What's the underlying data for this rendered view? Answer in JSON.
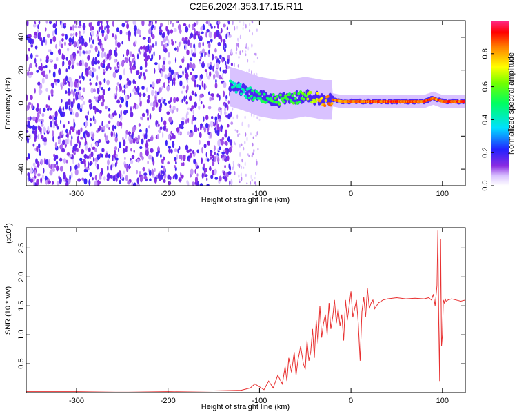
{
  "title": "C2E6.2024.353.17.15.R11",
  "chart_data": [
    {
      "type": "heatmap",
      "xlabel": "Height of straight line (km)",
      "ylabel": "Frequency (Hz)",
      "xlim": [
        -355,
        125
      ],
      "ylim": [
        -50,
        50
      ],
      "x_ticks": [
        "-300",
        "-200",
        "-100",
        "0",
        "100"
      ],
      "x_tick_values": [
        -300,
        -200,
        -100,
        0,
        100
      ],
      "y_ticks": [
        "-40",
        "-20",
        "0",
        "20",
        "40"
      ],
      "y_tick_values": [
        -40,
        -20,
        0,
        20,
        40
      ],
      "colorbar": {
        "label": "Normalized spectral amplitude",
        "range": [
          0,
          1
        ],
        "ticks": [
          "0.0",
          "0.2",
          "0.4",
          "0.6",
          "0.8"
        ],
        "tick_values": [
          0.0,
          0.2,
          0.4,
          0.6,
          0.8
        ]
      },
      "noise_region": {
        "x_range": [
          -355,
          -130
        ],
        "frequency_range": [
          -50,
          50
        ],
        "amplitude": [
          0.05,
          0.2
        ]
      },
      "signal_track": {
        "x": [
          -132,
          -120,
          -110,
          -100,
          -90,
          -80,
          -70,
          -60,
          -50,
          -40,
          -30,
          -20,
          -10,
          0,
          20,
          40,
          60,
          80,
          90,
          95,
          100,
          110,
          125
        ],
        "frequency": [
          10,
          8,
          6,
          4,
          3,
          2,
          2,
          3,
          4,
          3,
          2,
          2,
          1,
          1,
          1,
          1,
          1,
          1,
          3,
          2,
          1,
          1,
          1
        ],
        "peak_amplitude": [
          0.45,
          0.45,
          0.5,
          0.55,
          0.55,
          0.6,
          0.6,
          0.6,
          0.65,
          0.75,
          0.85,
          0.9,
          0.9,
          0.9,
          0.95,
          0.95,
          0.95,
          0.95,
          0.9,
          0.9,
          0.95,
          0.95,
          0.95
        ]
      }
    },
    {
      "type": "line",
      "xlabel": "Height of straight line (km)",
      "ylabel": "SNR (10 * v/v)",
      "y_scale_label": "(x10",
      "y_scale_exp": "4",
      "xlim": [
        -355,
        125
      ],
      "ylim": [
        0,
        2.85
      ],
      "x_ticks": [
        "-300",
        "-200",
        "-100",
        "0",
        "100"
      ],
      "x_tick_values": [
        -300,
        -200,
        -100,
        0,
        100
      ],
      "y_ticks": [
        "0.5",
        "1.0",
        "1.5",
        "2.0",
        "2.5"
      ],
      "y_tick_values": [
        0.5,
        1.0,
        1.5,
        2.0,
        2.5
      ],
      "color": "#e83030",
      "series": [
        {
          "x": [
            -355,
            -300,
            -250,
            -200,
            -150,
            -120,
            -110,
            -105,
            -100,
            -95,
            -90,
            -85,
            -80,
            -75,
            -72,
            -70,
            -68,
            -65,
            -62,
            -60,
            -58,
            -55,
            -52,
            -50,
            -48,
            -46,
            -44,
            -42,
            -40,
            -38,
            -36,
            -34,
            -32,
            -30,
            -28,
            -26,
            -24,
            -22,
            -20,
            -18,
            -16,
            -14,
            -12,
            -10,
            -8,
            -6,
            -4,
            -2,
            0,
            2,
            4,
            6,
            8,
            10,
            12,
            14,
            16,
            18,
            20,
            22,
            24,
            26,
            28,
            30,
            35,
            40,
            50,
            60,
            70,
            80,
            85,
            88,
            90,
            92,
            94,
            95,
            96,
            97,
            98,
            99,
            100,
            101,
            102,
            103,
            104,
            106,
            110,
            115,
            120,
            125
          ],
          "y": [
            0.02,
            0.02,
            0.03,
            0.02,
            0.03,
            0.04,
            0.08,
            0.15,
            0.1,
            0.05,
            0.2,
            0.08,
            0.3,
            0.15,
            0.45,
            0.2,
            0.6,
            0.35,
            0.7,
            0.3,
            0.55,
            0.8,
            0.5,
            0.4,
            0.9,
            0.55,
            0.7,
            1.1,
            0.6,
            1.25,
            0.85,
            1.5,
            0.95,
            1.2,
            1.35,
            1.0,
            1.55,
            1.1,
            1.3,
            1.6,
            1.2,
            1.45,
            1.15,
            1.35,
            0.9,
            1.6,
            1.25,
            1.5,
            1.75,
            1.3,
            1.45,
            1.6,
            1.2,
            0.55,
            1.4,
            1.65,
            1.3,
            1.8,
            1.45,
            1.55,
            1.6,
            1.45,
            1.5,
            1.55,
            1.6,
            1.62,
            1.64,
            1.62,
            1.63,
            1.62,
            1.64,
            1.6,
            1.7,
            1.5,
            1.85,
            2.8,
            1.2,
            0.2,
            2.65,
            0.8,
            1.0,
            1.6,
            1.55,
            1.62,
            1.58,
            1.6,
            1.62,
            1.6,
            1.58,
            1.6
          ]
        }
      ]
    }
  ]
}
